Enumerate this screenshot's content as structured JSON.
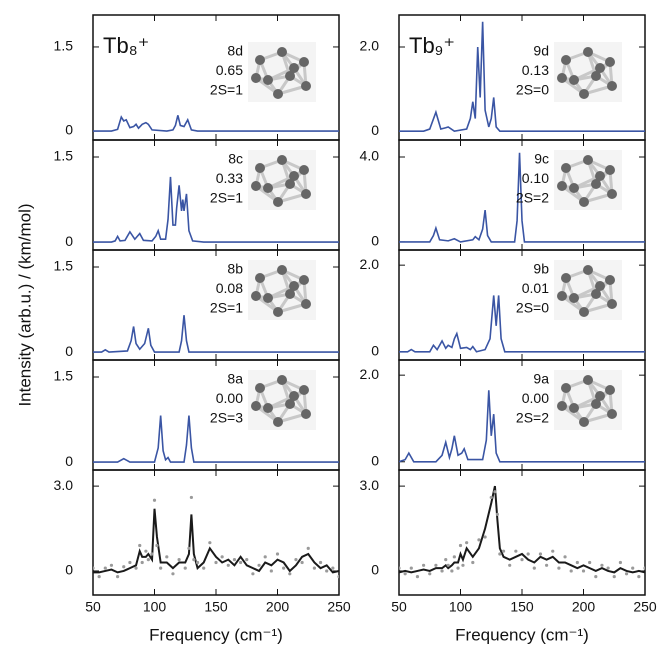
{
  "chart_data": [
    {
      "type": "line",
      "title": "Tb₈⁺",
      "annotations": [
        "8d",
        "0.65",
        "2S=1"
      ],
      "xlim": [
        50,
        250
      ],
      "xticks": [
        50,
        100,
        150,
        200,
        250
      ],
      "ylim": [
        -0.16,
        2.07
      ],
      "yticks": [
        0,
        1.5
      ],
      "x": [
        50,
        65,
        70,
        73,
        75,
        77,
        80,
        83,
        85,
        87,
        90,
        93,
        95,
        98,
        110,
        115,
        117,
        119,
        121,
        124,
        127,
        130,
        135,
        150,
        250
      ],
      "series": [
        {
          "color": "#3a55a4",
          "values": [
            0,
            0,
            0.03,
            0.25,
            0.18,
            0.2,
            0.06,
            0.08,
            0.12,
            0.05,
            0.12,
            0.15,
            0.12,
            0.02,
            0,
            0.02,
            0.1,
            0.28,
            0.1,
            0.08,
            0.2,
            0.02,
            0,
            0,
            0
          ]
        }
      ]
    },
    {
      "type": "line",
      "annotations": [
        "8c",
        "0.33",
        "2S=1"
      ],
      "xlim": [
        50,
        250
      ],
      "xticks": [
        50,
        100,
        150,
        200,
        250
      ],
      "ylim": [
        -0.14,
        1.8
      ],
      "yticks": [
        0,
        1.5
      ],
      "x": [
        50,
        65,
        68,
        70,
        72,
        76,
        80,
        84,
        86,
        88,
        91,
        98,
        101,
        103,
        105,
        109,
        111,
        113,
        115,
        117,
        118,
        120,
        122,
        123,
        124,
        126,
        128,
        131,
        140,
        250
      ],
      "series": [
        {
          "color": "#3a55a4",
          "values": [
            0,
            0,
            0.02,
            0.1,
            0.02,
            0.03,
            0.18,
            0.05,
            0.1,
            0.15,
            0.03,
            0.02,
            0.1,
            0.2,
            0.05,
            0.05,
            0.4,
            1.15,
            0.3,
            0.3,
            0.6,
            1.0,
            0.55,
            0.75,
            0.55,
            0.85,
            0.2,
            0.02,
            0,
            0
          ]
        }
      ]
    },
    {
      "type": "line",
      "ylabel": "Intensity (arb.u.) / (km/mol)",
      "annotations": [
        "8b",
        "0.08",
        "2S=1"
      ],
      "xlim": [
        50,
        250
      ],
      "xticks": [
        50,
        100,
        150,
        200,
        250
      ],
      "ylim": [
        -0.14,
        1.8
      ],
      "yticks": [
        0,
        1.5
      ],
      "x": [
        50,
        57,
        60,
        63,
        78,
        81,
        83,
        85,
        88,
        92,
        95,
        97,
        100,
        120,
        122,
        124,
        126,
        128,
        250
      ],
      "series": [
        {
          "color": "#3a55a4",
          "values": [
            0,
            0,
            0.04,
            0,
            0.02,
            0.2,
            0.45,
            0.15,
            0.05,
            0.15,
            0.42,
            0.12,
            0,
            0,
            0.2,
            0.65,
            0.2,
            0,
            0
          ]
        }
      ]
    },
    {
      "type": "line",
      "annotations": [
        "8a",
        "0.00",
        "2S=3"
      ],
      "xlim": [
        50,
        250
      ],
      "xticks": [
        50,
        100,
        150,
        200,
        250
      ],
      "ylim": [
        -0.14,
        1.8
      ],
      "yticks": [
        0,
        1.5
      ],
      "x": [
        50,
        70,
        75,
        80,
        100,
        103,
        105,
        107,
        109,
        111,
        113,
        124,
        126,
        128,
        130,
        132,
        250
      ],
      "series": [
        {
          "color": "#3a55a4",
          "values": [
            0,
            0,
            0.06,
            0,
            0,
            0.25,
            0.82,
            0.2,
            0.04,
            0.08,
            0,
            0,
            0.3,
            0.82,
            0.25,
            0,
            0
          ]
        }
      ]
    },
    {
      "type": "line",
      "xlabel": "Frequency (cm⁻¹)",
      "xtick_labels": true,
      "xlim": [
        50,
        250
      ],
      "xticks": [
        50,
        100,
        150,
        200,
        250
      ],
      "ylim": [
        -0.85,
        3.57
      ],
      "yticks": [
        0,
        {
          "value": 3,
          "label": "3.0"
        }
      ],
      "x": [
        50,
        55,
        60,
        65,
        70,
        75,
        80,
        85,
        88,
        90,
        93,
        95,
        98,
        100,
        102,
        105,
        110,
        115,
        120,
        125,
        128,
        130,
        132,
        135,
        140,
        145,
        150,
        155,
        160,
        165,
        170,
        175,
        180,
        185,
        190,
        195,
        200,
        205,
        210,
        215,
        220,
        225,
        230,
        235,
        240,
        245,
        250
      ],
      "series": [
        {
          "color": "#1a1a1a",
          "values": [
            -0.05,
            -0.05,
            0.0,
            0.05,
            -0.05,
            0.0,
            0.1,
            0.2,
            0.7,
            0.5,
            0.5,
            0.6,
            0.4,
            2.2,
            1.2,
            0.3,
            0.3,
            0.1,
            0.3,
            0.3,
            0.6,
            2.0,
            0.6,
            0.1,
            0.3,
            0.8,
            0.5,
            0.3,
            0.4,
            0.2,
            0.5,
            0.2,
            0.1,
            0.0,
            0.3,
            0.2,
            0.4,
            0.3,
            0.0,
            0.2,
            0.5,
            0.6,
            0.3,
            0.1,
            0.2,
            -0.05,
            0.0
          ]
        },
        {
          "color": "#9a9a9a",
          "marker": "dot",
          "values": [
            0.1,
            -0.2,
            0.1,
            0.2,
            -0.2,
            0.15,
            0.3,
            0.1,
            0.9,
            0.3,
            0.7,
            0.4,
            0.6,
            2.5,
            0.9,
            0.1,
            0.5,
            -0.1,
            0.4,
            0.1,
            0.8,
            2.6,
            0.4,
            0.3,
            0.1,
            1.0,
            0.3,
            0.5,
            0.2,
            0.4,
            0.3,
            0.4,
            -0.1,
            0.2,
            0.5,
            0.0,
            0.6,
            0.1,
            -0.1,
            0.4,
            0.3,
            0.8,
            0.1,
            0.3,
            0.0,
            0.1,
            -0.2
          ]
        }
      ]
    },
    {
      "type": "line",
      "title": "Tb₉⁺",
      "annotations": [
        "9d",
        "0.13",
        "2S=0"
      ],
      "xlim": [
        50,
        250
      ],
      "xticks": [
        50,
        100,
        150,
        200,
        250
      ],
      "ylim": [
        -0.21,
        2.76
      ],
      "yticks": [
        0,
        {
          "value": 2,
          "label": "2.0"
        }
      ],
      "x": [
        50,
        70,
        75,
        80,
        84,
        88,
        90,
        95,
        105,
        108,
        110,
        112,
        114,
        116,
        118,
        120,
        123,
        125,
        127,
        129,
        132,
        140,
        250
      ],
      "series": [
        {
          "color": "#3a55a4",
          "values": [
            0,
            0,
            0.05,
            0.45,
            0.05,
            0.08,
            0.1,
            0,
            0.05,
            0.3,
            0.7,
            0.3,
            2.0,
            0.8,
            2.6,
            0.5,
            0.1,
            0.3,
            0.8,
            0.1,
            0,
            0,
            0
          ]
        }
      ]
    },
    {
      "type": "line",
      "annotations": [
        "9c",
        "0.10",
        "2S=2"
      ],
      "xlim": [
        50,
        250
      ],
      "xticks": [
        50,
        100,
        150,
        200,
        250
      ],
      "ylim": [
        -0.38,
        4.8
      ],
      "yticks": [
        0,
        {
          "value": 4,
          "label": "4.0"
        }
      ],
      "x": [
        50,
        75,
        78,
        80,
        83,
        90,
        95,
        100,
        110,
        112,
        115,
        118,
        120,
        122,
        125,
        144,
        146,
        148,
        150,
        152,
        250
      ],
      "series": [
        {
          "color": "#3a55a4",
          "values": [
            0,
            0,
            0.3,
            0.65,
            0.1,
            0.05,
            0.15,
            0,
            0.1,
            0.25,
            0.1,
            0.6,
            1.5,
            0.3,
            0,
            0,
            1.0,
            4.2,
            1.0,
            0,
            0
          ]
        }
      ]
    },
    {
      "type": "line",
      "annotations": [
        "9b",
        "0.01",
        "2S=0"
      ],
      "xlim": [
        50,
        250
      ],
      "xticks": [
        50,
        100,
        150,
        200,
        250
      ],
      "ylim": [
        -0.19,
        2.35
      ],
      "yticks": [
        0,
        {
          "value": 2,
          "label": "2.0"
        }
      ],
      "x": [
        50,
        57,
        60,
        63,
        75,
        78,
        81,
        85,
        88,
        90,
        93,
        95,
        97,
        100,
        105,
        108,
        110,
        113,
        120,
        124,
        127,
        129,
        131,
        133,
        136,
        250
      ],
      "series": [
        {
          "color": "#3a55a4",
          "values": [
            0,
            0,
            0.05,
            0,
            0,
            0.15,
            0.05,
            0.25,
            0.08,
            0.15,
            0.1,
            0.3,
            0.42,
            0.08,
            0.1,
            0.05,
            0.12,
            0,
            0.05,
            0.3,
            1.3,
            0.6,
            1.3,
            0.3,
            0,
            0
          ]
        }
      ]
    },
    {
      "type": "line",
      "annotations": [
        "9a",
        "0.00",
        "2S=2"
      ],
      "xlim": [
        50,
        250
      ],
      "xticks": [
        50,
        100,
        150,
        200,
        250
      ],
      "ylim": [
        -0.19,
        2.35
      ],
      "yticks": [
        0,
        {
          "value": 2,
          "label": "2.0"
        }
      ],
      "x": [
        50,
        55,
        58,
        62,
        80,
        85,
        88,
        91,
        93,
        95,
        98,
        101,
        103,
        106,
        118,
        121,
        123,
        125,
        127,
        129,
        132,
        250
      ],
      "series": [
        {
          "color": "#3a55a4",
          "values": [
            0,
            0.05,
            0.2,
            0,
            0,
            0.15,
            0.45,
            0.1,
            0.3,
            0.6,
            0.15,
            0.2,
            0.3,
            0.05,
            0.05,
            0.5,
            1.65,
            0.6,
            1.1,
            0.2,
            0,
            0
          ]
        }
      ]
    },
    {
      "type": "line",
      "xlabel": "Frequency (cm⁻¹)",
      "xtick_labels": true,
      "xlim": [
        50,
        250
      ],
      "xticks": [
        50,
        100,
        150,
        200,
        250
      ],
      "ylim": [
        -0.85,
        3.57
      ],
      "yticks": [
        0,
        {
          "value": 3,
          "label": "3.0"
        }
      ],
      "x": [
        50,
        55,
        60,
        65,
        70,
        75,
        80,
        85,
        88,
        90,
        93,
        95,
        98,
        100,
        102,
        105,
        110,
        115,
        120,
        125,
        128,
        130,
        132,
        135,
        140,
        145,
        150,
        155,
        160,
        165,
        170,
        175,
        180,
        185,
        190,
        195,
        200,
        205,
        210,
        215,
        220,
        225,
        230,
        235,
        240,
        245,
        250
      ],
      "series": [
        {
          "color": "#1a1a1a",
          "values": [
            -0.05,
            0.0,
            -0.05,
            0.0,
            0.05,
            0.0,
            0.1,
            0.1,
            0.2,
            0.1,
            0.2,
            0.3,
            0.3,
            0.6,
            0.4,
            0.8,
            0.5,
            0.8,
            1.5,
            2.4,
            3.0,
            1.8,
            0.8,
            0.5,
            0.4,
            0.5,
            0.6,
            0.4,
            0.3,
            0.5,
            0.4,
            0.5,
            0.3,
            0.3,
            0.2,
            0.1,
            0.2,
            0.1,
            0.0,
            0.1,
            0.0,
            -0.05,
            0.1,
            0.0,
            -0.05,
            0.0,
            -0.05
          ]
        },
        {
          "color": "#9a9a9a",
          "marker": "dot",
          "values": [
            0.1,
            -0.1,
            0.1,
            -0.2,
            0.2,
            -0.1,
            0.2,
            0.0,
            0.4,
            0.2,
            0.0,
            0.5,
            0.1,
            0.9,
            0.2,
            1.0,
            0.3,
            1.1,
            1.2,
            2.6,
            2.8,
            2.0,
            0.6,
            0.7,
            0.2,
            0.7,
            0.4,
            0.6,
            0.1,
            0.6,
            0.2,
            0.7,
            0.1,
            0.5,
            0.0,
            0.3,
            0.0,
            0.3,
            -0.2,
            0.2,
            0.1,
            -0.2,
            0.3,
            -0.1,
            0.1,
            -0.2,
            0.1
          ]
        }
      ]
    }
  ]
}
